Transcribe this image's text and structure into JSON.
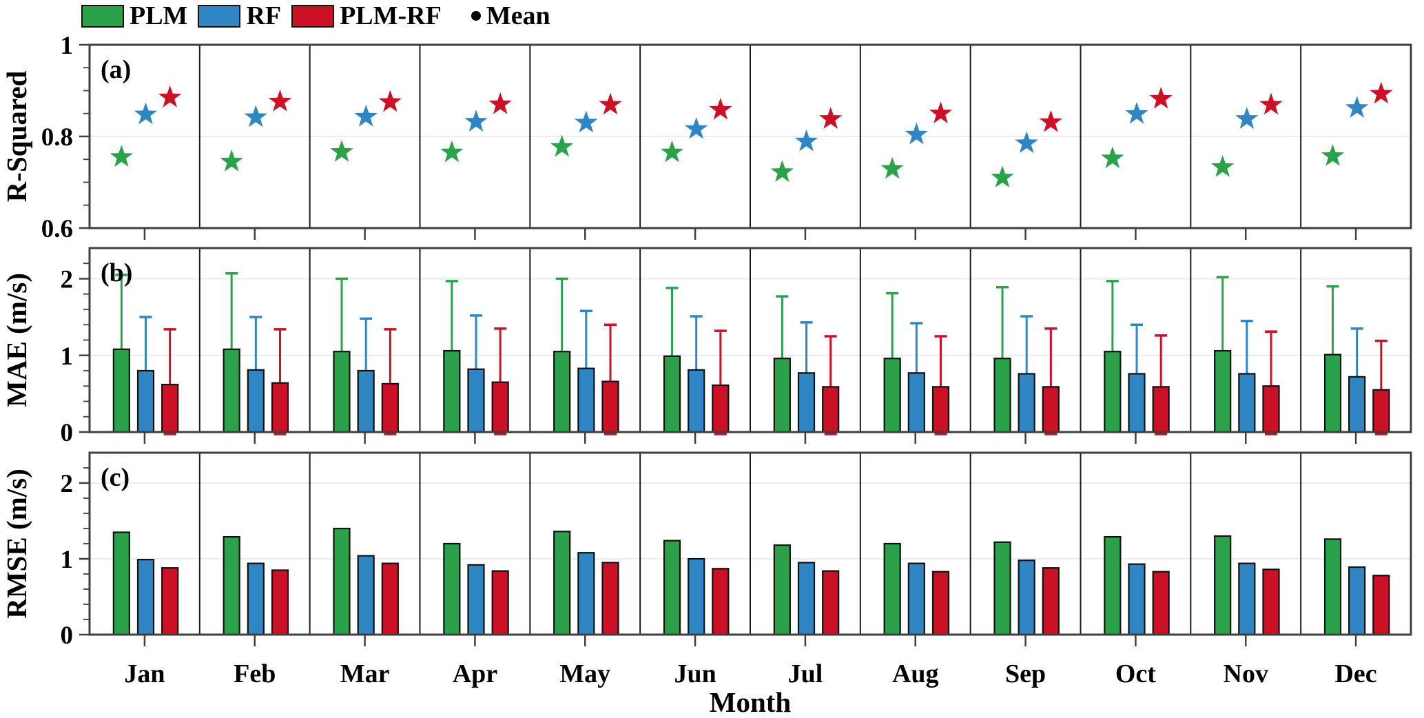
{
  "legend": {
    "items": [
      {
        "label": "PLM",
        "color": "#2BA24A",
        "type": "patch"
      },
      {
        "label": "RF",
        "color": "#2F86C3",
        "type": "patch"
      },
      {
        "label": "PLM-RF",
        "color": "#CC1126",
        "type": "patch"
      },
      {
        "label": "Mean",
        "color": "#000000",
        "type": "dot"
      }
    ]
  },
  "xlabel": "Month",
  "months": [
    "Jan",
    "Feb",
    "Mar",
    "Apr",
    "May",
    "Jun",
    "Jul",
    "Aug",
    "Sep",
    "Oct",
    "Nov",
    "Dec"
  ],
  "colors": {
    "PLM": "#2BA24A",
    "RF": "#2F86C3",
    "PLM-RF": "#CC1126"
  },
  "frame_color": "#3f3f3f",
  "gridline_color": "#ececec",
  "chart_data": [
    {
      "id": "a",
      "type": "scatter",
      "marker": "star",
      "tag": "(a)",
      "ylabel": "R-Squared",
      "ylim": [
        0.6,
        1.0
      ],
      "yticks": [
        {
          "v": 1,
          "label": "1"
        },
        {
          "v": 0.8,
          "label": "0.8"
        },
        {
          "v": 0.6,
          "label": "0.6"
        }
      ],
      "minor_ticks": [
        0.65,
        0.7,
        0.75,
        0.85,
        0.9,
        0.95
      ],
      "gridlines": [
        0.8
      ],
      "categories": [
        "Jan",
        "Feb",
        "Mar",
        "Apr",
        "May",
        "Jun",
        "Jul",
        "Aug",
        "Sep",
        "Oct",
        "Nov",
        "Dec"
      ],
      "series": [
        {
          "name": "PLM",
          "values": [
            0.755,
            0.745,
            0.766,
            0.765,
            0.777,
            0.765,
            0.722,
            0.729,
            0.71,
            0.752,
            0.733,
            0.757
          ]
        },
        {
          "name": "RF",
          "values": [
            0.848,
            0.842,
            0.843,
            0.832,
            0.83,
            0.816,
            0.789,
            0.804,
            0.785,
            0.849,
            0.838,
            0.862
          ]
        },
        {
          "name": "PLM-RF",
          "values": [
            0.885,
            0.876,
            0.875,
            0.87,
            0.869,
            0.858,
            0.838,
            0.85,
            0.831,
            0.882,
            0.869,
            0.893
          ]
        }
      ]
    },
    {
      "id": "b",
      "type": "bar",
      "tag": "(b)",
      "ylabel": "MAE (m/s)",
      "ylim": [
        0,
        2.4
      ],
      "yticks": [
        {
          "v": 2,
          "label": "2"
        },
        {
          "v": 1,
          "label": "1"
        },
        {
          "v": 0,
          "label": "0"
        }
      ],
      "minor_ticks": [
        0.2,
        0.4,
        0.6,
        0.8,
        1.2,
        1.4,
        1.6,
        1.8,
        2.2
      ],
      "gridlines": [
        1,
        2
      ],
      "error_bars": true,
      "categories": [
        "Jan",
        "Feb",
        "Mar",
        "Apr",
        "May",
        "Jun",
        "Jul",
        "Aug",
        "Sep",
        "Oct",
        "Nov",
        "Dec"
      ],
      "series": [
        {
          "name": "PLM",
          "values": [
            1.08,
            1.08,
            1.05,
            1.06,
            1.05,
            0.99,
            0.96,
            0.96,
            0.96,
            1.05,
            1.06,
            1.01
          ],
          "upper": [
            2.05,
            2.07,
            2.0,
            1.97,
            2.0,
            1.88,
            1.77,
            1.81,
            1.89,
            1.97,
            2.02,
            1.9
          ]
        },
        {
          "name": "RF",
          "values": [
            0.8,
            0.81,
            0.8,
            0.82,
            0.83,
            0.81,
            0.77,
            0.77,
            0.76,
            0.76,
            0.76,
            0.72
          ],
          "upper": [
            1.5,
            1.5,
            1.48,
            1.52,
            1.58,
            1.51,
            1.43,
            1.42,
            1.51,
            1.4,
            1.45,
            1.35
          ]
        },
        {
          "name": "PLM-RF",
          "values": [
            0.62,
            0.64,
            0.63,
            0.65,
            0.66,
            0.61,
            0.59,
            0.59,
            0.59,
            0.59,
            0.6,
            0.55
          ],
          "upper": [
            1.34,
            1.34,
            1.34,
            1.35,
            1.4,
            1.32,
            1.25,
            1.25,
            1.35,
            1.26,
            1.31,
            1.19
          ]
        }
      ]
    },
    {
      "id": "c",
      "type": "bar",
      "tag": "(c)",
      "ylabel": "RMSE (m/s)",
      "ylim": [
        0,
        2.4
      ],
      "yticks": [
        {
          "v": 2,
          "label": "2"
        },
        {
          "v": 1,
          "label": "1"
        },
        {
          "v": 0,
          "label": "0"
        }
      ],
      "minor_ticks": [
        0.2,
        0.4,
        0.6,
        0.8,
        1.2,
        1.4,
        1.6,
        1.8,
        2.2
      ],
      "gridlines": [
        1,
        2
      ],
      "error_bars": false,
      "categories": [
        "Jan",
        "Feb",
        "Mar",
        "Apr",
        "May",
        "Jun",
        "Jul",
        "Aug",
        "Sep",
        "Oct",
        "Nov",
        "Dec"
      ],
      "series": [
        {
          "name": "PLM",
          "values": [
            1.35,
            1.29,
            1.4,
            1.2,
            1.36,
            1.24,
            1.18,
            1.2,
            1.22,
            1.29,
            1.3,
            1.26
          ]
        },
        {
          "name": "RF",
          "values": [
            0.99,
            0.94,
            1.04,
            0.92,
            1.08,
            1.0,
            0.95,
            0.94,
            0.98,
            0.93,
            0.94,
            0.89
          ]
        },
        {
          "name": "PLM-RF",
          "values": [
            0.88,
            0.85,
            0.94,
            0.84,
            0.95,
            0.87,
            0.84,
            0.83,
            0.88,
            0.83,
            0.86,
            0.78
          ]
        }
      ]
    }
  ]
}
